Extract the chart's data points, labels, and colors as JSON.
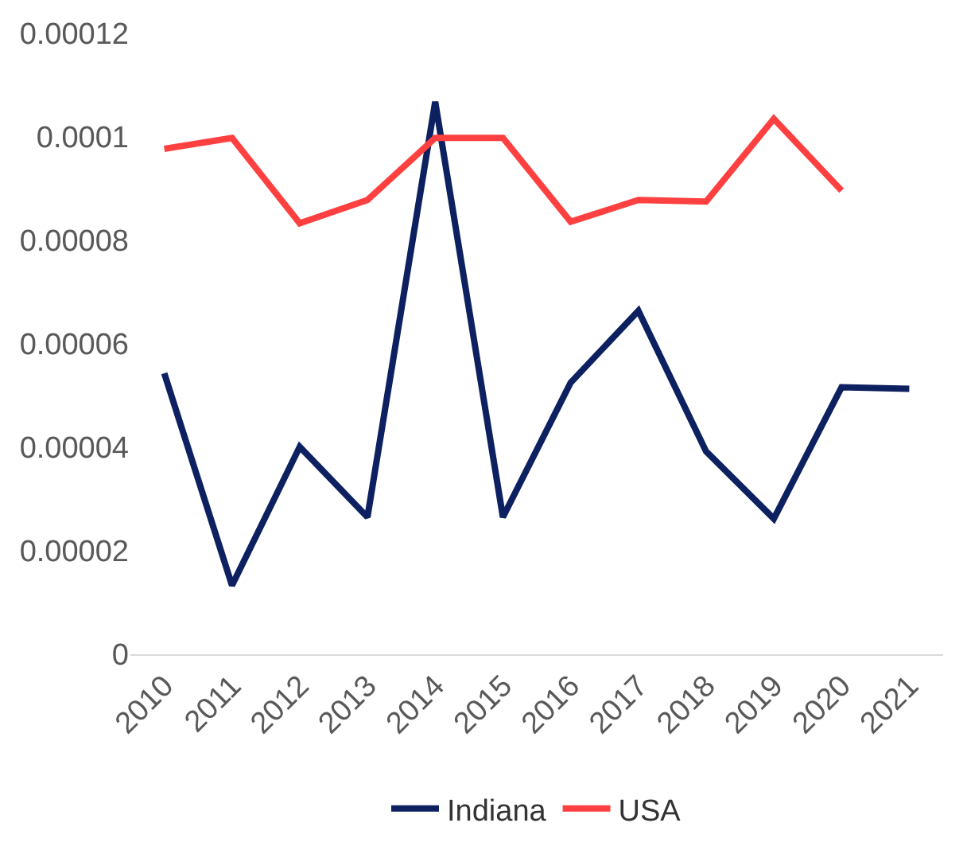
{
  "chart_data": {
    "type": "line",
    "categories": [
      "2010",
      "2011",
      "2012",
      "2013",
      "2014",
      "2015",
      "2016",
      "2017",
      "2018",
      "2019",
      "2020",
      "2021"
    ],
    "series": [
      {
        "name": "Indiana",
        "color": "#0d2060",
        "values": [
          5.43e-05,
          1.33e-05,
          4.01e-05,
          2.65e-05,
          0.0001068,
          2.65e-05,
          5.25e-05,
          6.64e-05,
          3.92e-05,
          2.62e-05,
          5.16e-05,
          5.13e-05
        ]
      },
      {
        "name": "USA",
        "color": "#ff4040",
        "values": [
          9.77e-05,
          9.98e-05,
          8.33e-05,
          8.78e-05,
          9.98e-05,
          9.98e-05,
          8.36e-05,
          8.78e-05,
          8.75e-05,
          0.0001035,
          8.96e-05,
          null
        ]
      }
    ],
    "ylim": [
      0,
      0.00012
    ],
    "yticks": [
      {
        "value": 0,
        "label": "0"
      },
      {
        "value": 2e-05,
        "label": "0.00002"
      },
      {
        "value": 4e-05,
        "label": "0.00004"
      },
      {
        "value": 6e-05,
        "label": "0.00006"
      },
      {
        "value": 8e-05,
        "label": "0.00008"
      },
      {
        "value": 0.0001,
        "label": "0.0001"
      },
      {
        "value": 0.00012,
        "label": "0.00012"
      }
    ],
    "legend": "bottom",
    "line_style": "solid"
  }
}
